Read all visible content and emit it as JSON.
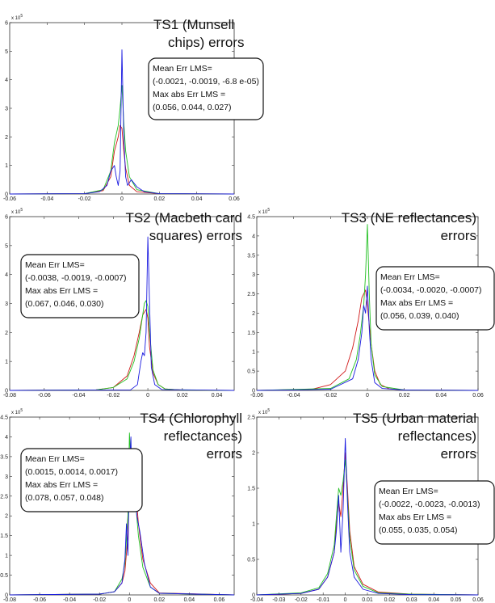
{
  "colors": {
    "red": "#d01818",
    "green": "#22c022",
    "blue": "#1a1ae0"
  },
  "chart_data": [
    {
      "type": "line",
      "title": [
        "TS1 (Munsell",
        "chips) errors"
      ],
      "xlim": [
        -0.06,
        0.06
      ],
      "ylim": [
        0,
        600000
      ],
      "xticks": [
        -0.06,
        -0.04,
        -0.02,
        0,
        0.02,
        0.04,
        0.06
      ],
      "xtick_labels": [
        "-0.06",
        "-0.04",
        "-0.02",
        "0",
        "0.02",
        "0.04",
        "0.06"
      ],
      "yticks": [
        0,
        100000,
        200000,
        300000,
        400000,
        500000,
        600000
      ],
      "ytick_labels": [
        "0",
        "1",
        "2",
        "3",
        "4",
        "5",
        "6"
      ],
      "y_exponent": [
        "x 10",
        "5"
      ],
      "annotation": [
        "Mean Err LMS=",
        "(-0.0021, -0.0019, -6.8 e-05)",
        "Max abs Err LMS =",
        "(0.056, 0.044, 0.027)"
      ],
      "series": [
        {
          "color": "red",
          "x": [
            -0.06,
            -0.02,
            -0.01,
            -0.006,
            -0.004,
            -0.002,
            -0.001,
            0,
            0.001,
            0.002,
            0.004,
            0.008,
            0.02,
            0.06
          ],
          "y": [
            0,
            1000,
            12000,
            60000,
            150000,
            200000,
            240000,
            230000,
            150000,
            90000,
            30000,
            8000,
            1000,
            0
          ]
        },
        {
          "color": "green",
          "x": [
            -0.06,
            -0.02,
            -0.01,
            -0.006,
            -0.004,
            -0.002,
            -0.001,
            0,
            0.001,
            0.002,
            0.004,
            0.008,
            0.02,
            0.06
          ],
          "y": [
            0,
            1000,
            15000,
            80000,
            180000,
            240000,
            300000,
            380000,
            250000,
            150000,
            60000,
            15000,
            1000,
            0
          ]
        },
        {
          "color": "blue",
          "x": [
            -0.06,
            -0.02,
            -0.012,
            -0.008,
            -0.006,
            -0.004,
            -0.003,
            -0.002,
            -0.001,
            0,
            0.001,
            0.002,
            0.003,
            0.005,
            0.008,
            0.012,
            0.02,
            0.06
          ],
          "y": [
            0,
            1000,
            8000,
            30000,
            80000,
            100000,
            60000,
            30000,
            80000,
            505000,
            200000,
            60000,
            30000,
            50000,
            25000,
            8000,
            1000,
            0
          ]
        }
      ]
    },
    {
      "type": "line",
      "title": [
        "TS2 (Macbeth card",
        "squares) errors"
      ],
      "xlim": [
        -0.08,
        0.05
      ],
      "ylim": [
        0,
        600000
      ],
      "xticks": [
        -0.08,
        -0.06,
        -0.04,
        -0.02,
        0,
        0.02,
        0.04
      ],
      "xtick_labels": [
        "-0.08",
        "-0.06",
        "-0.04",
        "-0.02",
        "0",
        "0.02",
        "0.04"
      ],
      "yticks": [
        0,
        100000,
        200000,
        300000,
        400000,
        500000,
        600000
      ],
      "ytick_labels": [
        "0",
        "1",
        "2",
        "3",
        "4",
        "5",
        "6"
      ],
      "y_exponent": [
        "x 10",
        "5"
      ],
      "annotation": [
        "Mean Err LMS=",
        "(-0.0038, -0.0019, -0.0007)",
        "Max abs Err LMS =",
        "(0.067, 0.046, 0.030)"
      ],
      "series": [
        {
          "color": "red",
          "x": [
            -0.08,
            -0.03,
            -0.02,
            -0.012,
            -0.008,
            -0.005,
            -0.003,
            -0.001,
            0,
            0.001,
            0.003,
            0.006,
            0.01,
            0.02,
            0.05
          ],
          "y": [
            0,
            2000,
            10000,
            50000,
            120000,
            200000,
            260000,
            280000,
            250000,
            150000,
            60000,
            20000,
            5000,
            1000,
            0
          ]
        },
        {
          "color": "green",
          "x": [
            -0.08,
            -0.03,
            -0.02,
            -0.012,
            -0.008,
            -0.005,
            -0.003,
            -0.002,
            -0.001,
            0,
            0.001,
            0.003,
            0.006,
            0.01,
            0.02,
            0.05
          ],
          "y": [
            0,
            2000,
            10000,
            40000,
            100000,
            180000,
            260000,
            300000,
            310000,
            290000,
            200000,
            70000,
            20000,
            5000,
            1000,
            0
          ]
        },
        {
          "color": "blue",
          "x": [
            -0.08,
            -0.01,
            -0.006,
            -0.004,
            -0.003,
            -0.002,
            -0.001,
            0,
            0.001,
            0.002,
            0.004,
            0.008,
            0.05
          ],
          "y": [
            0,
            2000,
            20000,
            100000,
            130000,
            120000,
            200000,
            530000,
            300000,
            80000,
            20000,
            3000,
            0
          ]
        }
      ]
    },
    {
      "type": "line",
      "title": [
        "TS3 (NE reflectances)",
        "errors"
      ],
      "xlim": [
        -0.06,
        0.06
      ],
      "ylim": [
        0,
        450000
      ],
      "xticks": [
        -0.06,
        -0.04,
        -0.02,
        0,
        0.02,
        0.04,
        0.06
      ],
      "xtick_labels": [
        "-0.06",
        "-0.04",
        "-0.02",
        "0",
        "0.02",
        "0.04",
        "0.06"
      ],
      "yticks": [
        0,
        50000,
        100000,
        150000,
        200000,
        250000,
        300000,
        350000,
        400000,
        450000
      ],
      "ytick_labels": [
        "0",
        "0.5",
        "1",
        "1.5",
        "2",
        "2.5",
        "3",
        "3.5",
        "4",
        "4.5"
      ],
      "y_exponent": [
        "x 10",
        "5"
      ],
      "annotation": [
        "Mean Err LMS=",
        "(-0.0034, -0.0020, -0.0007)",
        "Max abs Err LMS =",
        "(0.056, 0.039, 0.040)"
      ],
      "series": [
        {
          "color": "red",
          "x": [
            -0.06,
            -0.03,
            -0.02,
            -0.012,
            -0.008,
            -0.005,
            -0.003,
            -0.001,
            0,
            0.002,
            0.004,
            0.007,
            0.012,
            0.02,
            0.06
          ],
          "y": [
            0,
            3000,
            15000,
            50000,
            110000,
            180000,
            240000,
            260000,
            220000,
            120000,
            50000,
            15000,
            4000,
            1000,
            0
          ]
        },
        {
          "color": "green",
          "x": [
            -0.06,
            -0.02,
            -0.01,
            -0.006,
            -0.004,
            -0.002,
            -0.001,
            0,
            0.001,
            0.002,
            0.004,
            0.008,
            0.02,
            0.06
          ],
          "y": [
            0,
            5000,
            30000,
            80000,
            140000,
            220000,
            300000,
            430000,
            250000,
            120000,
            40000,
            10000,
            1000,
            0
          ]
        },
        {
          "color": "blue",
          "x": [
            -0.06,
            -0.02,
            -0.008,
            -0.005,
            -0.003,
            -0.002,
            -0.001,
            0,
            0.001,
            0.002,
            0.004,
            0.008,
            0.02,
            0.06
          ],
          "y": [
            0,
            3000,
            30000,
            80000,
            150000,
            220000,
            200000,
            270000,
            160000,
            80000,
            20000,
            5000,
            1000,
            0
          ]
        }
      ]
    },
    {
      "type": "line",
      "title": [
        "TS4 (Chlorophyll",
        "reflectances)",
        "errors"
      ],
      "xlim": [
        -0.08,
        0.07
      ],
      "ylim": [
        0,
        450000
      ],
      "xticks": [
        -0.08,
        -0.06,
        -0.04,
        -0.02,
        0,
        0.02,
        0.04,
        0.06
      ],
      "xtick_labels": [
        "-0.08",
        "-0.06",
        "-0.04",
        "-0.02",
        "0",
        "0.02",
        "0.04",
        "0.06"
      ],
      "yticks": [
        0,
        50000,
        100000,
        150000,
        200000,
        250000,
        300000,
        350000,
        400000,
        450000
      ],
      "ytick_labels": [
        "0",
        "0.5",
        "1",
        "1.5",
        "2",
        "2.5",
        "3",
        "3.5",
        "4",
        "4.5"
      ],
      "y_exponent": [
        "x 10",
        "5"
      ],
      "annotation": [
        "Mean Err LMS=",
        "(0.0015, 0.0014, 0.0017)",
        "Max abs Err LMS =",
        "(0.078, 0.057,   0.048)"
      ],
      "series": [
        {
          "color": "red",
          "x": [
            -0.08,
            -0.02,
            -0.01,
            -0.005,
            -0.003,
            -0.001,
            0,
            0.001,
            0.002,
            0.004,
            0.006,
            0.009,
            0.014,
            0.02,
            0.07
          ],
          "y": [
            0,
            2000,
            8000,
            30000,
            60000,
            150000,
            370000,
            320000,
            260000,
            280000,
            180000,
            90000,
            30000,
            5000,
            0
          ]
        },
        {
          "color": "green",
          "x": [
            -0.08,
            -0.02,
            -0.01,
            -0.005,
            -0.003,
            -0.001,
            0,
            0.001,
            0.002,
            0.004,
            0.006,
            0.009,
            0.014,
            0.02,
            0.07
          ],
          "y": [
            0,
            2000,
            8000,
            40000,
            80000,
            200000,
            410000,
            330000,
            300000,
            240000,
            150000,
            70000,
            20000,
            4000,
            0
          ]
        },
        {
          "color": "blue",
          "x": [
            -0.08,
            -0.02,
            -0.01,
            -0.005,
            -0.003,
            -0.002,
            -0.001,
            0,
            0.001,
            0.002,
            0.003,
            0.005,
            0.007,
            0.01,
            0.014,
            0.02,
            0.07
          ],
          "y": [
            0,
            2000,
            8000,
            30000,
            90000,
            180000,
            100000,
            320000,
            400000,
            220000,
            300000,
            200000,
            160000,
            80000,
            20000,
            4000,
            0
          ]
        }
      ]
    },
    {
      "type": "line",
      "title": [
        "TS5 (Urban material",
        "reflectances)",
        "errors"
      ],
      "xlim": [
        -0.04,
        0.06
      ],
      "ylim": [
        0,
        250000
      ],
      "xticks": [
        -0.04,
        -0.03,
        -0.02,
        -0.01,
        0,
        0.01,
        0.02,
        0.03,
        0.04,
        0.05,
        0.06
      ],
      "xtick_labels": [
        "-0.04",
        "-0.03",
        "-0.02",
        "-0.01",
        "0",
        "0.01",
        "0.02",
        "0.03",
        "0.04",
        "0.05",
        "0.06"
      ],
      "yticks": [
        0,
        50000,
        100000,
        150000,
        200000,
        250000
      ],
      "ytick_labels": [
        "0",
        "0.5",
        "1",
        "1.5",
        "2",
        "2.5"
      ],
      "y_exponent": [
        "x 10",
        "5"
      ],
      "annotation": [
        "Mean Err LMS=",
        "(-0.0022, -0.0023, -0.0013)",
        "Max abs Err LMS =",
        "(0.055, 0.035, 0.054)"
      ],
      "series": [
        {
          "color": "red",
          "x": [
            -0.04,
            -0.02,
            -0.012,
            -0.008,
            -0.005,
            -0.004,
            -0.003,
            -0.002,
            -0.001,
            0,
            0.001,
            0.002,
            0.004,
            0.008,
            0.015,
            0.03,
            0.06
          ],
          "y": [
            0,
            2000,
            8000,
            25000,
            60000,
            100000,
            130000,
            110000,
            150000,
            200000,
            150000,
            90000,
            40000,
            15000,
            4000,
            1000,
            0
          ]
        },
        {
          "color": "green",
          "x": [
            -0.04,
            -0.02,
            -0.012,
            -0.008,
            -0.005,
            -0.004,
            -0.003,
            -0.002,
            -0.001,
            0,
            0.001,
            0.002,
            0.004,
            0.008,
            0.015,
            0.03,
            0.06
          ],
          "y": [
            0,
            3000,
            10000,
            30000,
            70000,
            110000,
            150000,
            140000,
            160000,
            190000,
            140000,
            80000,
            35000,
            12000,
            3000,
            1000,
            0
          ]
        },
        {
          "color": "blue",
          "x": [
            -0.04,
            -0.02,
            -0.012,
            -0.008,
            -0.005,
            -0.004,
            -0.003,
            -0.002,
            -0.001,
            0,
            0.001,
            0.002,
            0.004,
            0.008,
            0.015,
            0.03,
            0.06
          ],
          "y": [
            0,
            2000,
            8000,
            25000,
            60000,
            90000,
            140000,
            60000,
            120000,
            220000,
            130000,
            60000,
            25000,
            8000,
            2000,
            500,
            0
          ]
        }
      ]
    }
  ]
}
